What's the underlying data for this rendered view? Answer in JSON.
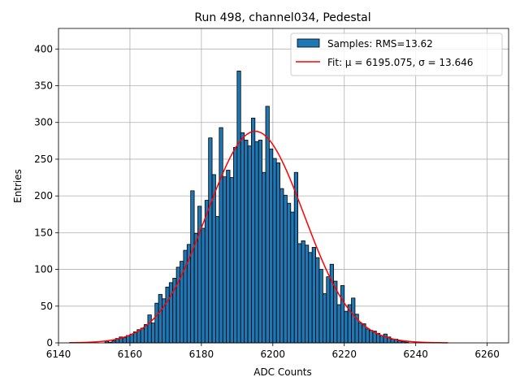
{
  "chart_data": {
    "type": "bar",
    "title": "Run 498, channel034, Pedestal",
    "xlabel": "ADC Counts",
    "ylabel": "Entries",
    "xlim": [
      6140,
      6266
    ],
    "ylim": [
      0,
      428
    ],
    "x_ticks": [
      6140,
      6160,
      6180,
      6200,
      6220,
      6240,
      6260
    ],
    "y_ticks": [
      0,
      50,
      100,
      150,
      200,
      250,
      300,
      350,
      400
    ],
    "grid": true,
    "legend_position": "top-right",
    "bin_width": 1,
    "series": [
      {
        "name": "Samples: RMS=13.62",
        "kind": "histogram",
        "color": "#1f77b4",
        "bins": [
          6153,
          6154,
          6155,
          6156,
          6157,
          6158,
          6159,
          6160,
          6161,
          6162,
          6163,
          6164,
          6165,
          6166,
          6167,
          6168,
          6169,
          6170,
          6171,
          6172,
          6173,
          6174,
          6175,
          6176,
          6177,
          6178,
          6179,
          6180,
          6181,
          6182,
          6183,
          6184,
          6185,
          6186,
          6187,
          6188,
          6189,
          6190,
          6191,
          6192,
          6193,
          6194,
          6195,
          6196,
          6197,
          6198,
          6199,
          6200,
          6201,
          6202,
          6203,
          6204,
          6205,
          6206,
          6207,
          6208,
          6209,
          6210,
          6211,
          6212,
          6213,
          6214,
          6215,
          6216,
          6217,
          6218,
          6219,
          6220,
          6221,
          6222,
          6223,
          6224,
          6225,
          6226,
          6227,
          6228,
          6229,
          6230,
          6231,
          6232,
          6233,
          6234,
          6235,
          6236,
          6237
        ],
        "counts": [
          2,
          1,
          3,
          6,
          8,
          7,
          10,
          12,
          15,
          18,
          20,
          25,
          38,
          27,
          54,
          66,
          60,
          76,
          82,
          88,
          103,
          111,
          126,
          134,
          207,
          149,
          186,
          156,
          194,
          279,
          229,
          172,
          293,
          226,
          235,
          225,
          266,
          370,
          286,
          276,
          268,
          306,
          274,
          276,
          232,
          322,
          264,
          251,
          245,
          210,
          201,
          190,
          178,
          232,
          135,
          139,
          133,
          123,
          130,
          116,
          100,
          67,
          90,
          107,
          84,
          52,
          78,
          43,
          52,
          61,
          39,
          27,
          26,
          19,
          17,
          16,
          13,
          10,
          12,
          8,
          5,
          5,
          3,
          2,
          1
        ]
      },
      {
        "name": "Fit: μ = 6195.075, σ = 13.646",
        "kind": "gaussian-fit",
        "color": "#ff0000",
        "mu": 6195.075,
        "sigma": 13.646,
        "amplitude": 288,
        "x_range": [
          6143,
          6249
        ]
      }
    ]
  }
}
